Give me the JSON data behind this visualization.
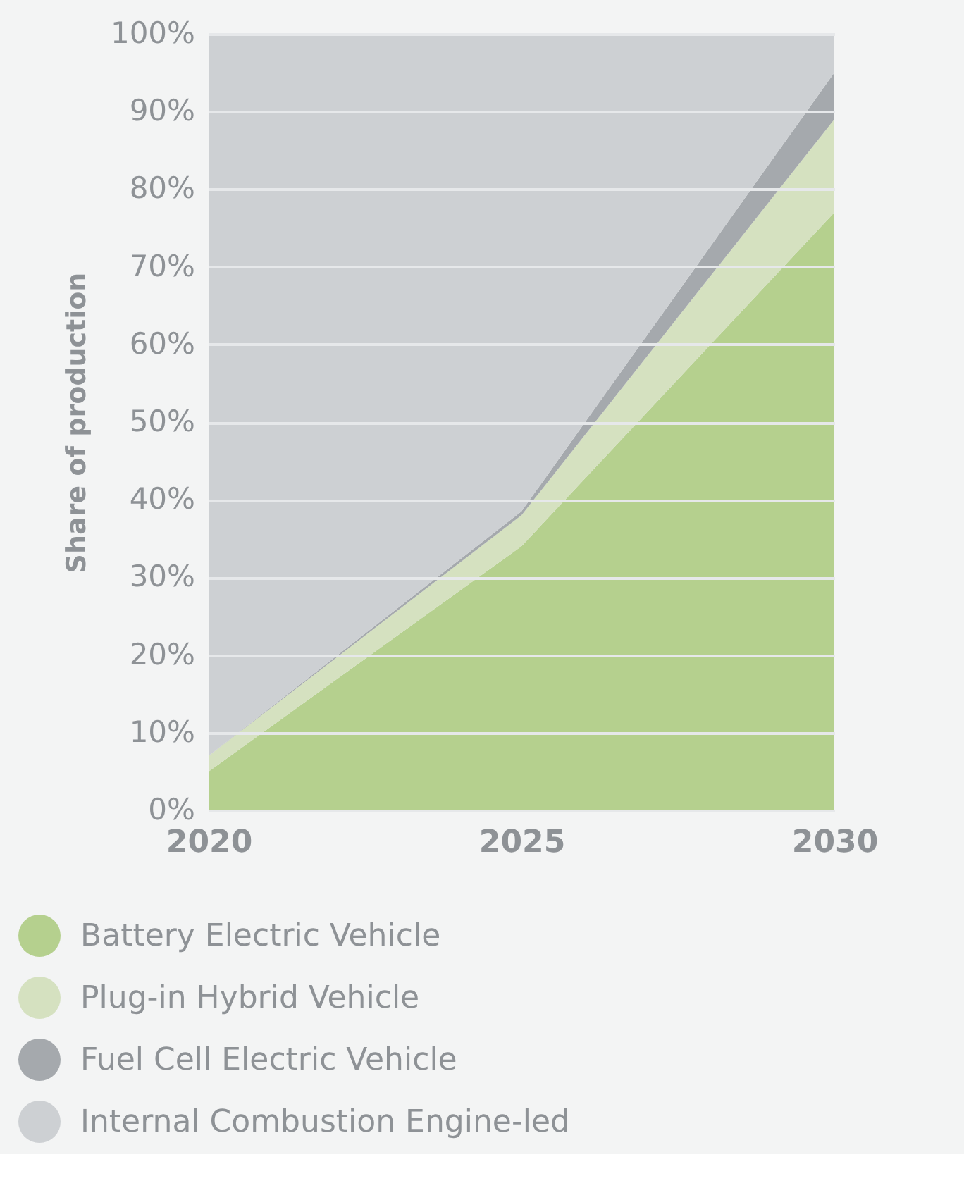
{
  "chart_data": {
    "type": "area",
    "stacked": true,
    "ylabel": "Share of production",
    "x": [
      2020,
      2025,
      2030
    ],
    "series": [
      {
        "name": "Battery Electric Vehicle",
        "color": "#b5d08e",
        "values": [
          5,
          34,
          77
        ]
      },
      {
        "name": "Plug-in Hybrid Vehicle",
        "color": "#d5e1c0",
        "values": [
          2,
          4,
          12
        ]
      },
      {
        "name": "Fuel Cell Electric Vehicle",
        "color": "#a5a9ad",
        "values": [
          0,
          0.5,
          6
        ]
      },
      {
        "name": "Internal Combustion Engine-led",
        "color": "#cdd0d3",
        "values": [
          93,
          61.5,
          5
        ]
      }
    ],
    "xlim": [
      2020,
      2030
    ],
    "xticks": [
      2020,
      2025,
      2030
    ],
    "ylim": [
      0,
      100
    ],
    "yticks": [
      {
        "value": 0,
        "label": "0%"
      },
      {
        "value": 10,
        "label": "10%"
      },
      {
        "value": 20,
        "label": "20%"
      },
      {
        "value": 30,
        "label": "30%"
      },
      {
        "value": 40,
        "label": "40%"
      },
      {
        "value": 50,
        "label": "50%"
      },
      {
        "value": 60,
        "label": "60%"
      },
      {
        "value": 70,
        "label": "70%"
      },
      {
        "value": 80,
        "label": "80%"
      },
      {
        "value": 90,
        "label": "90%"
      },
      {
        "value": 100,
        "label": "100%"
      }
    ],
    "grid": "y",
    "legend": "bottom"
  }
}
